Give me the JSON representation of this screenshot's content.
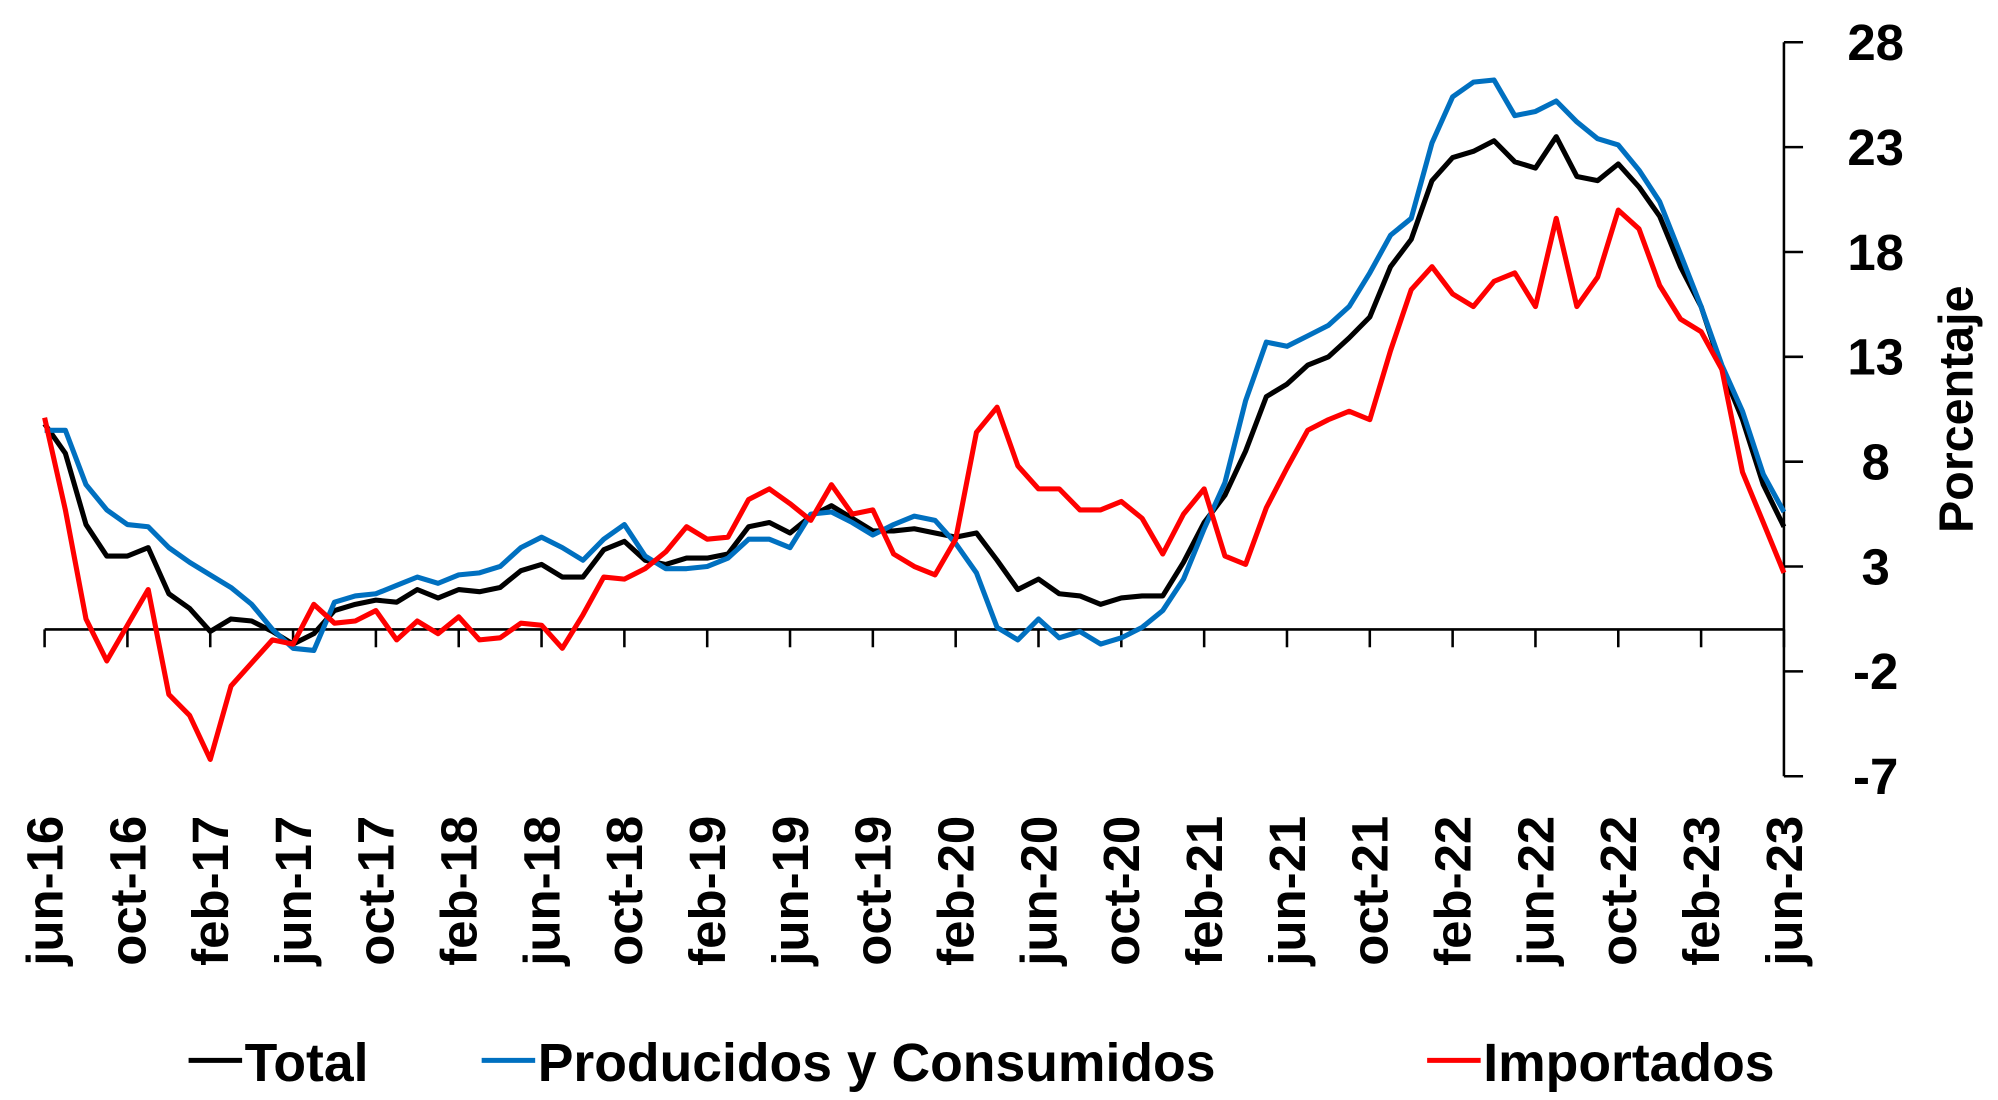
{
  "chart_data": {
    "type": "line",
    "y_label": "Porcentaje",
    "categories": [
      "jun-16",
      null,
      null,
      null,
      "oct-16",
      null,
      null,
      null,
      "feb-17",
      null,
      null,
      null,
      "jun-17",
      null,
      null,
      null,
      "oct-17",
      null,
      null,
      null,
      "feb-18",
      null,
      null,
      null,
      "jun-18",
      null,
      null,
      null,
      "oct-18",
      null,
      null,
      null,
      "feb-19",
      null,
      null,
      null,
      "jun-19",
      null,
      null,
      null,
      "oct-19",
      null,
      null,
      null,
      "feb-20",
      null,
      null,
      null,
      "jun-20",
      null,
      null,
      null,
      "oct-20",
      null,
      null,
      null,
      "feb-21",
      null,
      null,
      null,
      "jun-21",
      null,
      null,
      null,
      "oct-21",
      null,
      null,
      null,
      "feb-22",
      null,
      null,
      null,
      "jun-22",
      null,
      null,
      null,
      "oct-22",
      null,
      null,
      null,
      "feb-23",
      null,
      null,
      null,
      "jun-23"
    ],
    "series": [
      {
        "name": "Total",
        "color": "#000000",
        "values": [
          9.8,
          8.4,
          5.0,
          3.5,
          3.5,
          3.9,
          1.7,
          1.0,
          -0.1,
          0.5,
          0.4,
          -0.1,
          -0.7,
          -0.2,
          0.9,
          1.2,
          1.4,
          1.3,
          1.9,
          1.5,
          1.9,
          1.8,
          2.0,
          2.8,
          3.1,
          2.5,
          2.5,
          3.8,
          4.2,
          3.3,
          3.1,
          3.4,
          3.4,
          3.6,
          4.9,
          5.1,
          4.6,
          5.4,
          5.9,
          5.3,
          4.7,
          4.7,
          4.8,
          4.6,
          4.4,
          4.6,
          3.3,
          1.9,
          2.4,
          1.7,
          1.6,
          1.2,
          1.5,
          1.6,
          1.6,
          3.2,
          5.1,
          6.4,
          8.5,
          11.1,
          11.7,
          12.6,
          13.0,
          13.9,
          14.9,
          17.3,
          18.6,
          21.4,
          22.5,
          22.8,
          23.3,
          22.3,
          22.0,
          23.5,
          21.6,
          21.4,
          22.2,
          21.1,
          19.7,
          17.3,
          15.4,
          12.4,
          10.0,
          6.9,
          4.9
        ]
      },
      {
        "name": "Producidos y Consumidos",
        "color": "#0070c0",
        "values": [
          9.5,
          9.5,
          6.9,
          5.7,
          5.0,
          4.9,
          3.9,
          3.2,
          2.6,
          2.0,
          1.2,
          0,
          -0.9,
          -1.0,
          1.3,
          1.6,
          1.7,
          2.1,
          2.5,
          2.2,
          2.6,
          2.7,
          3.0,
          3.9,
          4.4,
          3.9,
          3.3,
          4.3,
          5.0,
          3.5,
          2.9,
          2.9,
          3.0,
          3.4,
          4.3,
          4.3,
          3.9,
          5.5,
          5.6,
          5.1,
          4.5,
          5.0,
          5.4,
          5.2,
          4.1,
          2.7,
          0.1,
          -0.5,
          0.5,
          -0.4,
          -0.1,
          -0.7,
          -0.4,
          0.1,
          0.9,
          2.4,
          4.8,
          7.0,
          10.9,
          13.7,
          13.5,
          14.0,
          14.5,
          15.4,
          17.0,
          18.8,
          19.6,
          23.2,
          25.4,
          26.1,
          26.2,
          24.5,
          24.7,
          25.2,
          24.2,
          23.4,
          23.1,
          21.9,
          20.4,
          17.9,
          15.4,
          12.6,
          10.4,
          7.4,
          5.6
        ]
      },
      {
        "name": "Importados",
        "color": "#ff0000",
        "values": [
          10.1,
          5.7,
          0.5,
          -1.5,
          0.2,
          1.9,
          -3.1,
          -4.1,
          -6.2,
          -2.7,
          -1.6,
          -0.5,
          -0.7,
          1.2,
          0.3,
          0.4,
          0.9,
          -0.5,
          0.4,
          -0.2,
          0.6,
          -0.5,
          -0.4,
          0.3,
          0.2,
          -0.9,
          0.7,
          2.5,
          2.4,
          2.9,
          3.7,
          4.9,
          4.3,
          4.4,
          6.2,
          6.7,
          6.0,
          5.2,
          6.9,
          5.5,
          5.7,
          3.6,
          3.0,
          2.6,
          4.3,
          9.4,
          10.6,
          7.8,
          6.7,
          6.7,
          5.7,
          5.7,
          6.1,
          5.3,
          3.6,
          5.5,
          6.7,
          3.5,
          3.1,
          5.8,
          7.7,
          9.5,
          10.0,
          10.4,
          10.0,
          13.3,
          16.2,
          17.3,
          16.0,
          15.4,
          16.6,
          17.0,
          15.4,
          19.6,
          15.4,
          16.8,
          20.0,
          19.1,
          16.4,
          14.8,
          14.2,
          12.4,
          7.5,
          5.1,
          2.7
        ]
      }
    ],
    "ylim": [
      -7,
      28
    ],
    "yticks": [
      28,
      23,
      18,
      13,
      8,
      3,
      -2,
      -7
    ],
    "legend": "bottom"
  }
}
